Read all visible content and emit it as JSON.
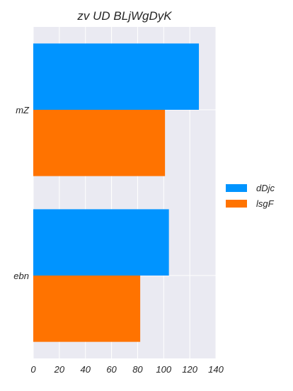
{
  "chart_data": {
    "type": "bar",
    "orientation": "horizontal",
    "title": "zv UD BLjWgDyK",
    "xlabel": "",
    "ylabel": "",
    "categories": [
      "mZ",
      "ebn"
    ],
    "series": [
      {
        "name": "dDjc",
        "values": [
          127,
          104
        ],
        "color": "#0094ff"
      },
      {
        "name": "lsgF",
        "values": [
          101,
          82
        ],
        "color": "#ff7300"
      }
    ],
    "xlim": [
      0,
      140
    ],
    "xticks": [
      0,
      20,
      40,
      60,
      80,
      100,
      120,
      140
    ],
    "grid": true,
    "background": "#eaeaf2",
    "legend_position": "right"
  }
}
